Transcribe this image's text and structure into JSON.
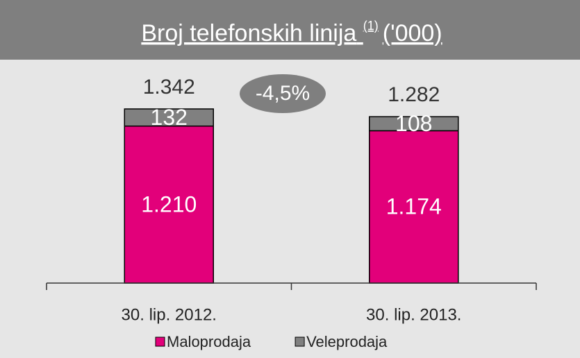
{
  "chart_data": {
    "type": "stacked_bar",
    "title": "Broj telefonskih linija",
    "title_note": "(1)",
    "title_unit": "('000)",
    "categories": [
      "30. lip. 2012.",
      "30. lip. 2013."
    ],
    "series": [
      {
        "name": "Maloprodaja",
        "color": "#e2007a",
        "values": [
          1210,
          1174
        ],
        "value_labels": [
          "1.210",
          "1.174"
        ]
      },
      {
        "name": "Veleprodaja",
        "color": "#808080",
        "values": [
          132,
          108
        ]
      }
    ],
    "totals": {
      "values": [
        1342,
        1282
      ],
      "value_labels": [
        "1.342",
        "1.282"
      ]
    },
    "annotation": "-4,5%",
    "legend": "bottom"
  }
}
